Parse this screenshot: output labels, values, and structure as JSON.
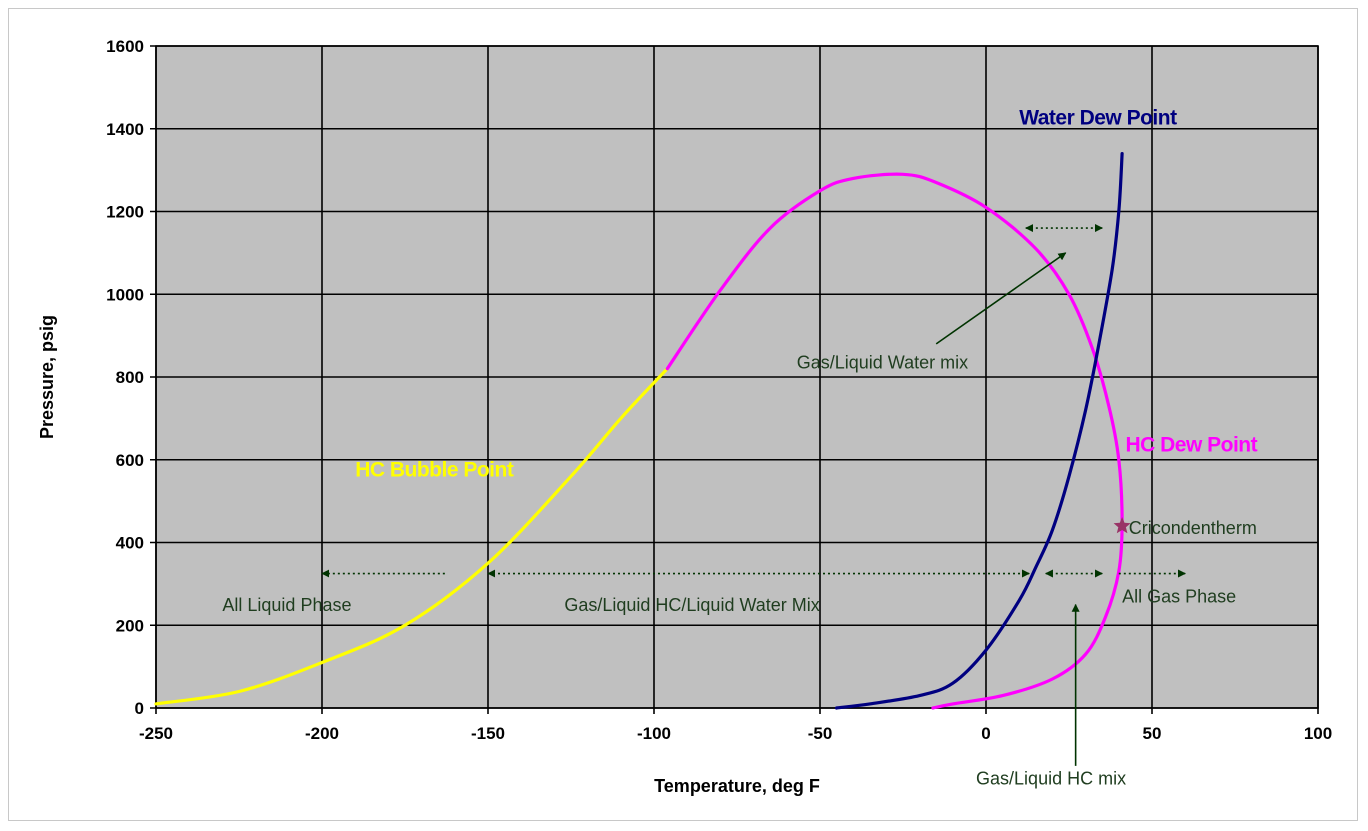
{
  "chart_data": {
    "type": "line",
    "xlabel": "Temperature, deg F",
    "ylabel": "Pressure, psig",
    "xlim": [
      -250,
      100
    ],
    "ylim": [
      0,
      1600
    ],
    "xticks": [
      -250,
      -200,
      -150,
      -100,
      -50,
      0,
      50,
      100
    ],
    "yticks": [
      0,
      200,
      400,
      600,
      800,
      1000,
      1200,
      1400,
      1600
    ],
    "grid": true,
    "plot_background": "#c0c0c0",
    "series": [
      {
        "name": "HC Bubble Point",
        "color": "#ffff00",
        "points": [
          [
            -250,
            10
          ],
          [
            -225,
            40
          ],
          [
            -200,
            110
          ],
          [
            -175,
            200
          ],
          [
            -150,
            350
          ],
          [
            -125,
            560
          ],
          [
            -110,
            700
          ],
          [
            -96,
            820
          ]
        ]
      },
      {
        "name": "HC Dew Point",
        "color": "#ff00ff",
        "points": [
          [
            -96,
            820
          ],
          [
            -80,
            1010
          ],
          [
            -65,
            1160
          ],
          [
            -50,
            1250
          ],
          [
            -40,
            1280
          ],
          [
            -25,
            1290
          ],
          [
            -15,
            1270
          ],
          [
            0,
            1210
          ],
          [
            15,
            1110
          ],
          [
            25,
            1000
          ],
          [
            32,
            870
          ],
          [
            37,
            730
          ],
          [
            40,
            600
          ],
          [
            41,
            450
          ],
          [
            40,
            330
          ],
          [
            36,
            220
          ],
          [
            30,
            130
          ],
          [
            20,
            70
          ],
          [
            5,
            30
          ],
          [
            -10,
            10
          ],
          [
            -16,
            0
          ]
        ]
      },
      {
        "name": "Water Dew Point",
        "color": "#000080",
        "points": [
          [
            -45,
            0
          ],
          [
            -35,
            10
          ],
          [
            -20,
            30
          ],
          [
            -10,
            60
          ],
          [
            0,
            140
          ],
          [
            10,
            260
          ],
          [
            15,
            340
          ],
          [
            20,
            430
          ],
          [
            25,
            560
          ],
          [
            30,
            720
          ],
          [
            34,
            880
          ],
          [
            38,
            1060
          ],
          [
            40,
            1200
          ],
          [
            41,
            1340
          ]
        ]
      }
    ],
    "labels": {
      "bubble": "HC Bubble Point",
      "dew": "HC Dew Point",
      "water": "Water Dew Point",
      "cricondentherm": "Cricondentherm",
      "all_liquid": "All Liquid Phase",
      "mix_hc_water": "Gas/Liquid HC/Liquid Water Mix",
      "all_gas": "All Gas Phase",
      "water_mix": "Gas/Liquid Water mix",
      "hc_mix": "Gas/Liquid HC mix"
    },
    "cricondentherm_point": [
      41,
      440
    ],
    "cricondentherm_color": "#993366",
    "annotation_color": "#003300"
  }
}
